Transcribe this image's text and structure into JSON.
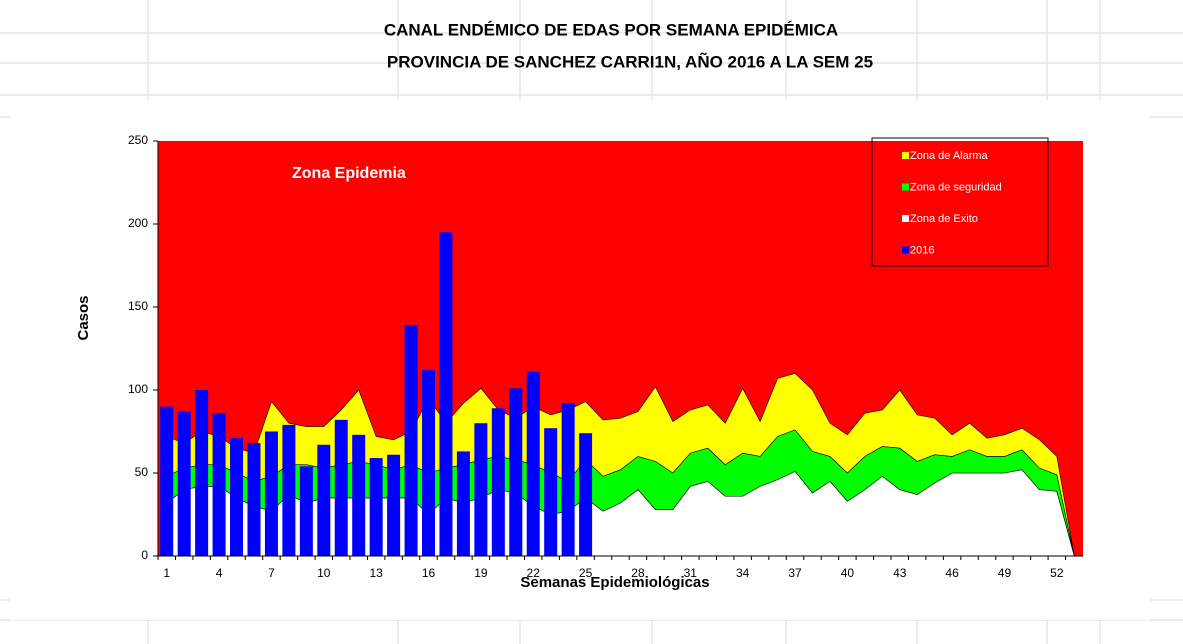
{
  "chart_data": {
    "type": "area",
    "title": "CANAL ENDÉMICO DE EDAS POR SEMANA EPIDÉMICA",
    "subtitle": "PROVINCIA DE SANCHEZ CARRI1N, AÑO 2016  A LA SEM 25",
    "annotation": "Zona Epidemia",
    "xlabel": "Semanas Epidemiológicas",
    "ylabel": "Casos",
    "plot_background": "#ff0000",
    "stacked": true,
    "legend": "top-right",
    "categories": [
      "1",
      null,
      null,
      "4",
      null,
      null,
      "7",
      null,
      null,
      "10",
      null,
      null,
      "13",
      null,
      null,
      "16",
      null,
      null,
      "19",
      null,
      null,
      "22",
      null,
      null,
      "25",
      null,
      null,
      "28",
      null,
      null,
      "31",
      null,
      null,
      "34",
      null,
      null,
      "37",
      null,
      null,
      "40",
      null,
      null,
      "43",
      null,
      null,
      "46",
      null,
      null,
      "49",
      null,
      null,
      "52",
      null
    ],
    "ylim": [
      0,
      250
    ],
    "yticks": [
      0,
      50,
      100,
      150,
      200,
      250
    ],
    "series": [
      {
        "name": "Zona de Alarma",
        "color": "#ffff00",
        "kind": "area",
        "stack_order": 2,
        "values": [
          24,
          15,
          20,
          17,
          15,
          17,
          45,
          25,
          23,
          25,
          33,
          43,
          17,
          18,
          20,
          45,
          27,
          37,
          43,
          28,
          25,
          35,
          35,
          43,
          35,
          34,
          31,
          27,
          45,
          31,
          26,
          26,
          25,
          39,
          21,
          35,
          34,
          37,
          20,
          23,
          26,
          22,
          35,
          28,
          22,
          13,
          16,
          11,
          13,
          13,
          17,
          11,
          0
        ]
      },
      {
        "name": "Zona de seguridad",
        "color": "#00ff00",
        "kind": "area",
        "stack_order": 1,
        "values": [
          16,
          13,
          13,
          13,
          15,
          15,
          21,
          18,
          23,
          18,
          20,
          22,
          20,
          17,
          20,
          25,
          18,
          23,
          23,
          20,
          20,
          25,
          25,
          18,
          23,
          21,
          20,
          20,
          29,
          22,
          20,
          20,
          19,
          26,
          18,
          26,
          25,
          25,
          15,
          17,
          20,
          18,
          25,
          20,
          17,
          10,
          14,
          10,
          10,
          12,
          13,
          10,
          0
        ]
      },
      {
        "name": "Zona de Exito",
        "color": "#ffffff",
        "kind": "area",
        "stack_order": 0,
        "values": [
          32,
          40,
          42,
          42,
          35,
          30,
          27,
          37,
          32,
          35,
          35,
          35,
          35,
          35,
          35,
          25,
          35,
          32,
          35,
          40,
          38,
          30,
          25,
          27,
          35,
          27,
          32,
          40,
          28,
          28,
          42,
          45,
          36,
          36,
          42,
          46,
          51,
          38,
          45,
          33,
          40,
          48,
          40,
          37,
          44,
          50,
          50,
          50,
          50,
          52,
          40,
          39,
          0
        ]
      },
      {
        "name": "2016",
        "color": "#0000ff",
        "kind": "bar",
        "values": [
          90,
          87,
          100,
          86,
          71,
          68,
          75,
          79,
          54,
          67,
          82,
          73,
          59,
          61,
          139,
          112,
          195,
          63,
          80,
          89,
          101,
          111,
          77,
          92,
          74,
          null,
          null,
          null,
          null,
          null,
          null,
          null,
          null,
          null,
          null,
          null,
          null,
          null,
          null,
          null,
          null,
          null,
          null,
          null,
          null,
          null,
          null,
          null,
          null,
          null,
          null,
          null,
          null
        ]
      }
    ]
  }
}
